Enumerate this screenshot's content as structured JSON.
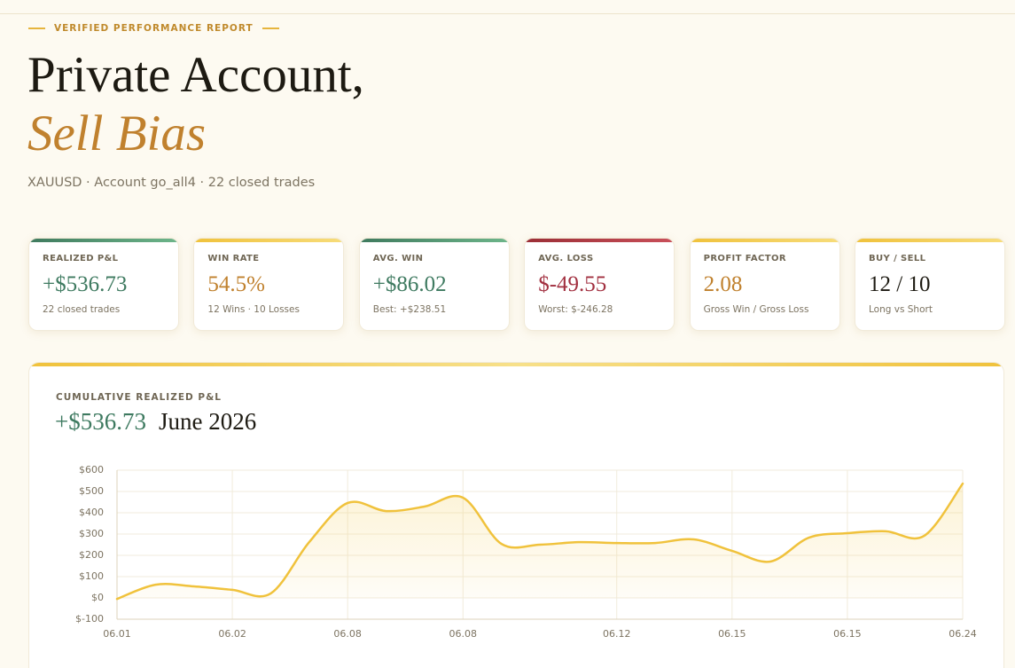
{
  "header": {
    "eyebrow": "VERIFIED PERFORMANCE REPORT",
    "title": "Private Account,",
    "subtitle": "Sell Bias",
    "meta": "XAUUSD · Account go_all4 · 22 closed trades"
  },
  "stats": [
    {
      "label": "REALIZED P&L",
      "value": "+$536.73",
      "note": "22 closed trades"
    },
    {
      "label": "WIN RATE",
      "value": "54.5%",
      "note": "12 Wins · 10 Losses"
    },
    {
      "label": "AVG. WIN",
      "value": "+$86.02",
      "note": "Best: +$238.51"
    },
    {
      "label": "AVG. LOSS",
      "value": "$-49.55",
      "note": "Worst: $-246.28"
    },
    {
      "label": "PROFIT FACTOR",
      "value": "2.08",
      "note": "Gross Win / Gross Loss"
    },
    {
      "label": "BUY / SELL",
      "value": "12 / 10",
      "note": "Long vs Short"
    }
  ],
  "chart_data": {
    "type": "line",
    "title": "CUMULATIVE REALIZED P&L",
    "headline": "+$536.73",
    "period": "June 2026",
    "categories": [
      "06.01",
      null,
      null,
      "06.02",
      null,
      null,
      "06.08",
      null,
      null,
      "06.08",
      null,
      null,
      null,
      "06.12",
      null,
      null,
      "06.15",
      null,
      null,
      "06.15",
      null,
      null,
      "06.24"
    ],
    "values": [
      -5,
      62,
      54,
      38,
      21,
      262,
      446,
      408,
      429,
      471,
      254,
      250,
      262,
      258,
      258,
      275,
      221,
      171,
      283,
      304,
      313,
      292,
      536.73
    ],
    "color": "#f0c23c",
    "ylim": [
      -100,
      600
    ],
    "yticks": [
      {
        "value": -100,
        "label": "$-100"
      },
      {
        "value": 0,
        "label": "$0"
      },
      {
        "value": 100,
        "label": "$100"
      },
      {
        "value": 200,
        "label": "$200"
      },
      {
        "value": 300,
        "label": "$300"
      },
      {
        "value": 400,
        "label": "$400"
      },
      {
        "value": 500,
        "label": "$500"
      },
      {
        "value": 600,
        "label": "$600"
      }
    ],
    "grid": true
  }
}
